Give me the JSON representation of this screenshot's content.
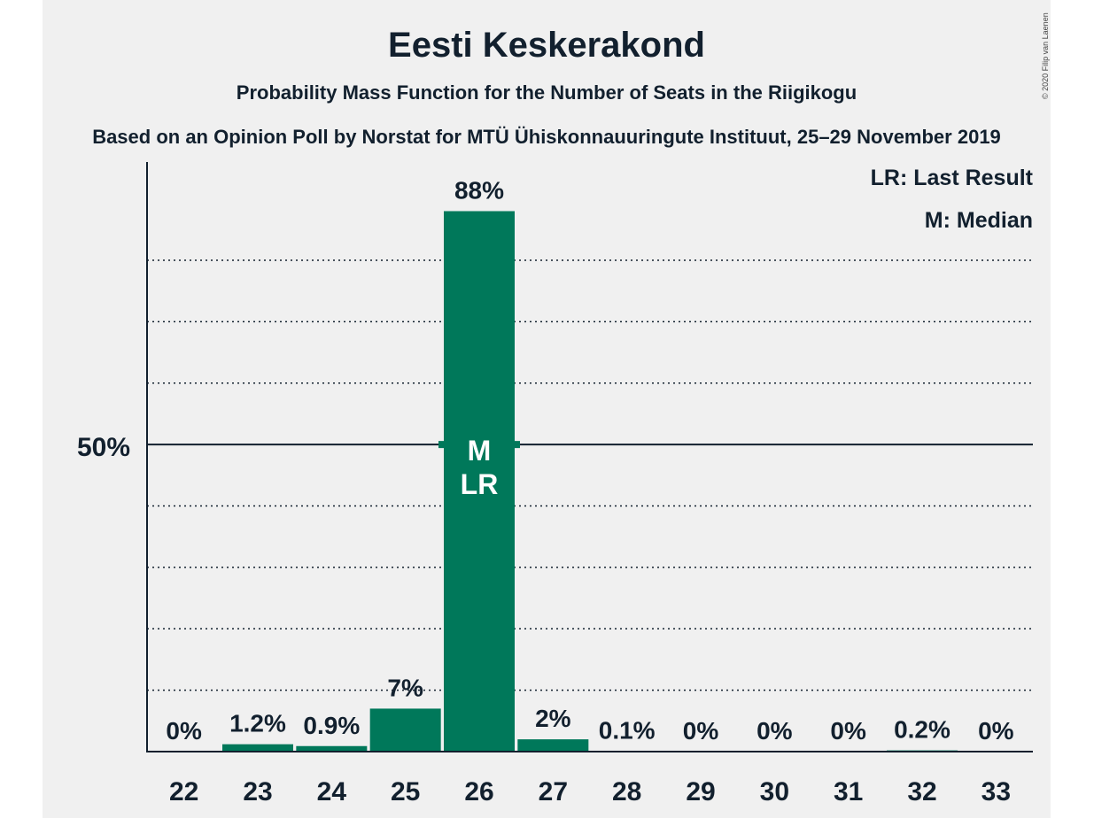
{
  "chart_data": {
    "type": "bar",
    "title": "Eesti Keskerakond",
    "subtitle": "Probability Mass Function for the Number of Seats in the Riigikogu",
    "subtitle2": "Based on an Opinion Poll by Norstat for MTÜ Ühiskonnauuringute Instituut, 25–29 November 2019",
    "copyright": "© 2020 Filip van Laenen",
    "categories": [
      "22",
      "23",
      "24",
      "25",
      "26",
      "27",
      "28",
      "29",
      "30",
      "31",
      "32",
      "33"
    ],
    "values": [
      0,
      1.2,
      0.9,
      7,
      88,
      2,
      0.1,
      0,
      0,
      0,
      0.2,
      0
    ],
    "value_labels": [
      "0%",
      "1.2%",
      "0.9%",
      "7%",
      "88%",
      "2%",
      "0.1%",
      "0%",
      "0%",
      "0%",
      "0.2%",
      "0%"
    ],
    "ylim": [
      0,
      96
    ],
    "ytick_label": "50%",
    "ytick_value": 50,
    "gridlines": [
      10,
      20,
      30,
      40,
      60,
      70,
      80
    ],
    "median_index": 4,
    "last_result_index": 4,
    "median_marker": "M",
    "last_result_marker": "LR",
    "legend": [
      "LR: Last Result",
      "M: Median"
    ],
    "legend_position": "top-right",
    "bar_color": "#00785a",
    "text_color": "#12202e",
    "background": "#f0f0f0"
  }
}
